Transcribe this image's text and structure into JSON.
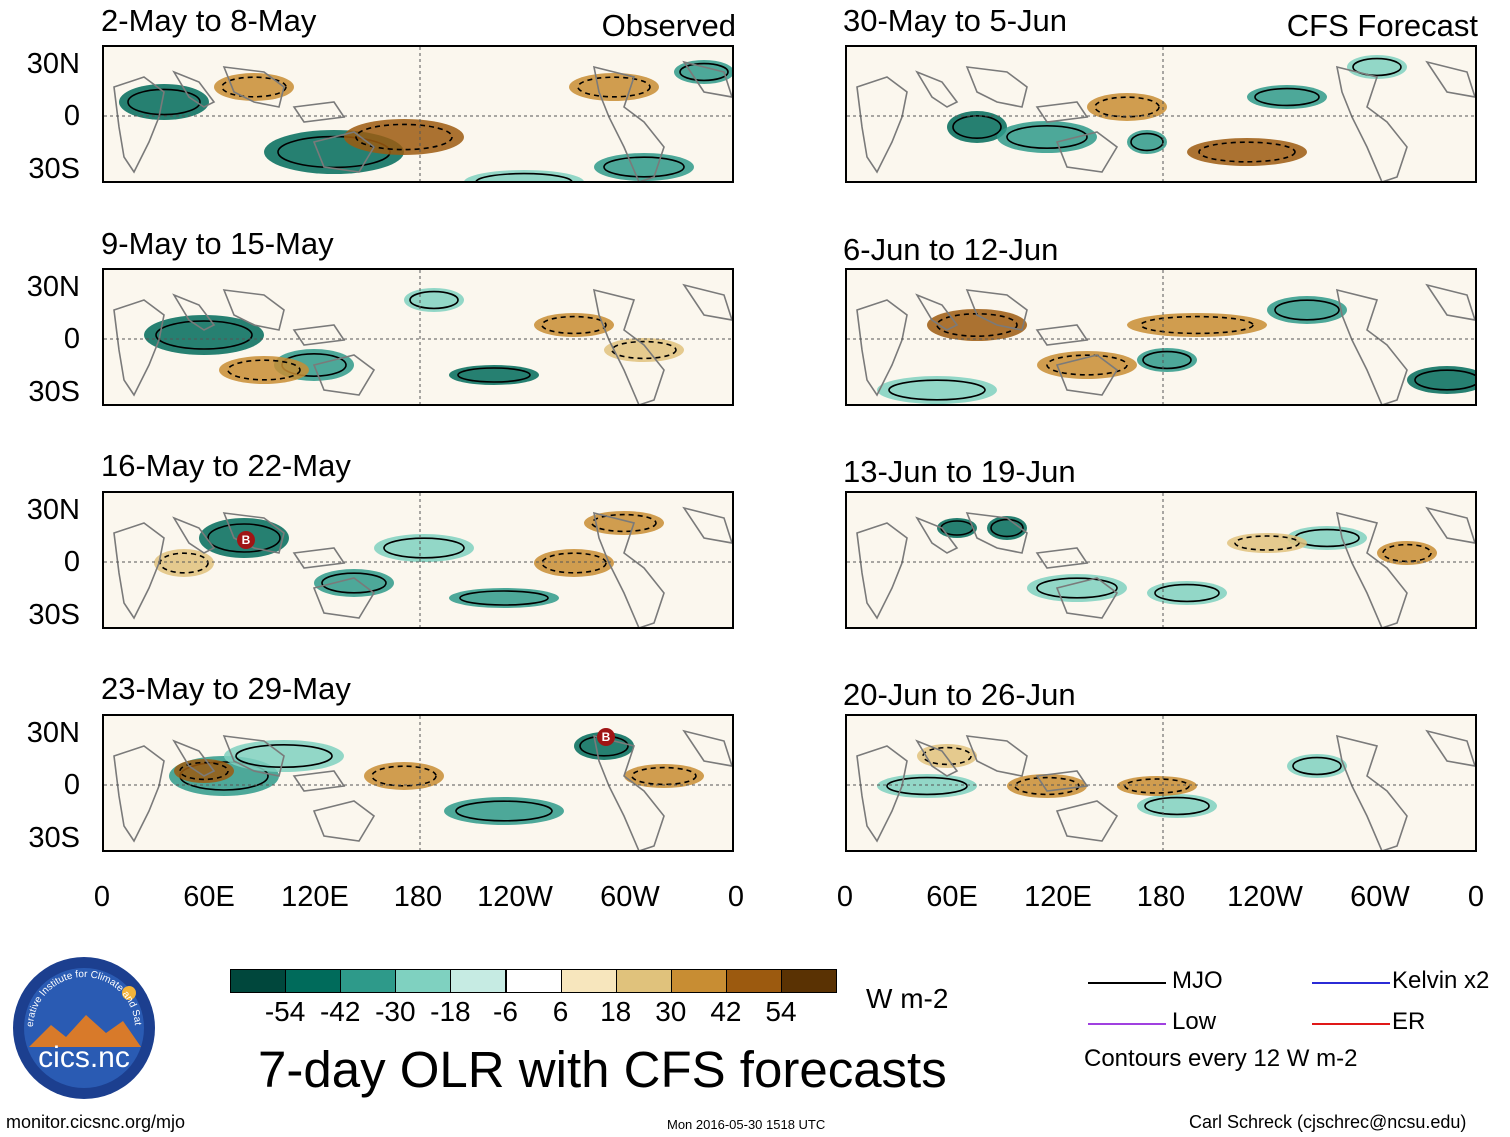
{
  "main_title": "7-day OLR with CFS forecasts",
  "column_tags": {
    "observed": "Observed",
    "forecast": "CFS Forecast"
  },
  "panels": {
    "observed": [
      {
        "period": "2-May to 8-May"
      },
      {
        "period": "9-May to 15-May"
      },
      {
        "period": "16-May to 22-May"
      },
      {
        "period": "23-May to 29-May"
      }
    ],
    "forecast": [
      {
        "period": "30-May to 5-Jun"
      },
      {
        "period": "6-Jun to 12-Jun"
      },
      {
        "period": "13-Jun to 19-Jun"
      },
      {
        "period": "20-Jun to 26-Jun"
      }
    ]
  },
  "lat_labels": [
    "30N",
    "0",
    "30S"
  ],
  "lon_labels": [
    "0",
    "60E",
    "120E",
    "180",
    "120W",
    "60W",
    "0"
  ],
  "colorbar": {
    "unit": "W m-2",
    "tick_labels": [
      "-54",
      "-42",
      "-30",
      "-18",
      "-6",
      "6",
      "18",
      "30",
      "42",
      "54"
    ],
    "colors": [
      "#00473c",
      "#006b5b",
      "#2e9a8a",
      "#7fd1c0",
      "#c6ebe3",
      "#ffffff",
      "#f7e6bd",
      "#e0c27c",
      "#c88d33",
      "#9c5a0f",
      "#5a3203"
    ]
  },
  "legend": {
    "items": [
      {
        "label": "MJO",
        "color": "#000000"
      },
      {
        "label": "Kelvin x2",
        "color": "#2b2bd6"
      },
      {
        "label": "Low",
        "color": "#a040e0"
      },
      {
        "label": "ER",
        "color": "#e01818"
      }
    ],
    "note": "Contours every 12 W m-2"
  },
  "logo": {
    "text": "cics.nc",
    "ring_text": "Cooperative Institute for Climate and Satellites"
  },
  "footer": {
    "left": "monitor.cicsnc.org/mjo",
    "center": "Mon 2016-05-30 1518 UTC",
    "right": "Carl Schreck (cjschrec@ncsu.edu)"
  },
  "storm_markers": [
    {
      "label": "B",
      "panel": "observed-3"
    },
    {
      "label": "B",
      "panel": "observed-4"
    }
  ]
}
